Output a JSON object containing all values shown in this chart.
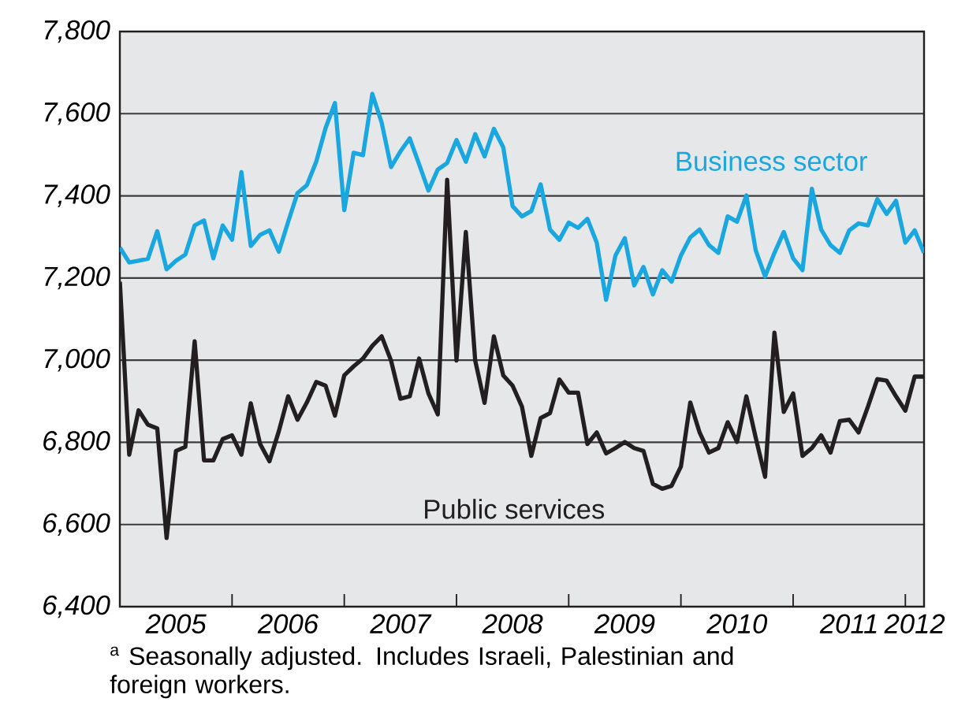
{
  "chart_data": {
    "type": "line",
    "x": [
      "2005-01",
      "2005-02",
      "2005-03",
      "2005-04",
      "2005-05",
      "2005-06",
      "2005-07",
      "2005-08",
      "2005-09",
      "2005-10",
      "2005-11",
      "2005-12",
      "2006-01",
      "2006-02",
      "2006-03",
      "2006-04",
      "2006-05",
      "2006-06",
      "2006-07",
      "2006-08",
      "2006-09",
      "2006-10",
      "2006-11",
      "2006-12",
      "2007-01",
      "2007-02",
      "2007-03",
      "2007-04",
      "2007-05",
      "2007-06",
      "2007-07",
      "2007-08",
      "2007-09",
      "2007-10",
      "2007-11",
      "2007-12",
      "2008-01",
      "2008-02",
      "2008-03",
      "2008-04",
      "2008-05",
      "2008-06",
      "2008-07",
      "2008-08",
      "2008-09",
      "2008-10",
      "2008-11",
      "2008-12",
      "2009-01",
      "2009-02",
      "2009-03",
      "2009-04",
      "2009-05",
      "2009-06",
      "2009-07",
      "2009-08",
      "2009-09",
      "2009-10",
      "2009-11",
      "2009-12",
      "2010-01",
      "2010-02",
      "2010-03",
      "2010-04",
      "2010-05",
      "2010-06",
      "2010-07",
      "2010-08",
      "2010-09",
      "2010-10",
      "2010-11",
      "2010-12",
      "2011-01",
      "2011-02",
      "2011-03",
      "2011-04",
      "2011-05",
      "2011-06",
      "2011-07",
      "2011-08",
      "2011-09",
      "2011-10",
      "2011-11",
      "2011-12",
      "2012-01",
      "2012-02",
      "2012-03"
    ],
    "series": [
      {
        "name": "Business sector",
        "color": "#1aa7e0",
        "values": [
          7274,
          7238,
          7242,
          7247,
          7314,
          7221,
          7242,
          7257,
          7328,
          7340,
          7248,
          7328,
          7293,
          7458,
          7278,
          7305,
          7316,
          7264,
          7337,
          7407,
          7426,
          7483,
          7565,
          7626,
          7365,
          7505,
          7499,
          7648,
          7578,
          7470,
          7508,
          7540,
          7477,
          7413,
          7464,
          7480,
          7536,
          7483,
          7550,
          7496,
          7563,
          7518,
          7375,
          7350,
          7363,
          7428,
          7318,
          7293,
          7335,
          7322,
          7344,
          7286,
          7147,
          7255,
          7297,
          7182,
          7227,
          7160,
          7219,
          7191,
          7255,
          7299,
          7318,
          7280,
          7261,
          7350,
          7337,
          7401,
          7267,
          7204,
          7261,
          7312,
          7248,
          7219,
          7417,
          7318,
          7280,
          7261,
          7316,
          7333,
          7328,
          7392,
          7356,
          7388,
          7286,
          7316,
          7261
        ]
      },
      {
        "name": "Public services",
        "color": "#231f20",
        "values": [
          7191,
          6770,
          6878,
          6843,
          6834,
          6567,
          6779,
          6789,
          7046,
          6756,
          6756,
          6808,
          6817,
          6770,
          6895,
          6796,
          6754,
          6827,
          6912,
          6855,
          6897,
          6947,
          6938,
          6865,
          6963,
          6985,
          7004,
          7035,
          7058,
          6999,
          6906,
          6912,
          7004,
          6919,
          6868,
          7439,
          6999,
          7312,
          6999,
          6896,
          7058,
          6963,
          6938,
          6887,
          6767,
          6859,
          6871,
          6953,
          6921,
          6921,
          6796,
          6824,
          6773,
          6786,
          6801,
          6786,
          6779,
          6699,
          6687,
          6694,
          6741,
          6897,
          6824,
          6775,
          6786,
          6849,
          6801,
          6912,
          6811,
          6716,
          7067,
          6874,
          6919,
          6767,
          6786,
          6817,
          6775,
          6852,
          6855,
          6824,
          6887,
          6954,
          6950,
          6912,
          6877,
          6960,
          6960
        ]
      }
    ],
    "xlim": [
      "2005-01",
      "2012-03"
    ],
    "xticks": [
      {
        "value": "2006-01",
        "label": null
      },
      {
        "value": "2007-01",
        "label": null
      },
      {
        "value": "2008-01",
        "label": null
      },
      {
        "value": "2009-01",
        "label": null
      },
      {
        "value": "2010-01",
        "label": null
      },
      {
        "value": "2011-01",
        "label": null
      },
      {
        "value": "2012-01",
        "label": null
      },
      {
        "value": "2005-07",
        "label": "2005"
      },
      {
        "value": "2006-07",
        "label": "2006"
      },
      {
        "value": "2007-07",
        "label": "2007"
      },
      {
        "value": "2008-07",
        "label": "2008"
      },
      {
        "value": "2009-07",
        "label": "2009"
      },
      {
        "value": "2010-07",
        "label": "2010"
      },
      {
        "value": "2011-07",
        "label": "2011"
      },
      {
        "value": "2012-02",
        "label": "2012"
      }
    ],
    "ylim": [
      6400,
      7800
    ],
    "yticks": [
      {
        "value": 6400,
        "label": "6,400"
      },
      {
        "value": 6600,
        "label": "6,600"
      },
      {
        "value": 6800,
        "label": "6,800"
      },
      {
        "value": 7000,
        "label": "7,000"
      },
      {
        "value": 7200,
        "label": "7,200"
      },
      {
        "value": 7400,
        "label": "7,400"
      },
      {
        "value": 7600,
        "label": "7,600"
      },
      {
        "value": 7800,
        "label": "7,800"
      }
    ],
    "grid": "y",
    "legend": false,
    "marker": "none",
    "line_style": "solid",
    "annotations": [
      "$^{a}$ Seasonally adjusted. Includes Israeli, Palestinian and foreign workers."
    ]
  }
}
